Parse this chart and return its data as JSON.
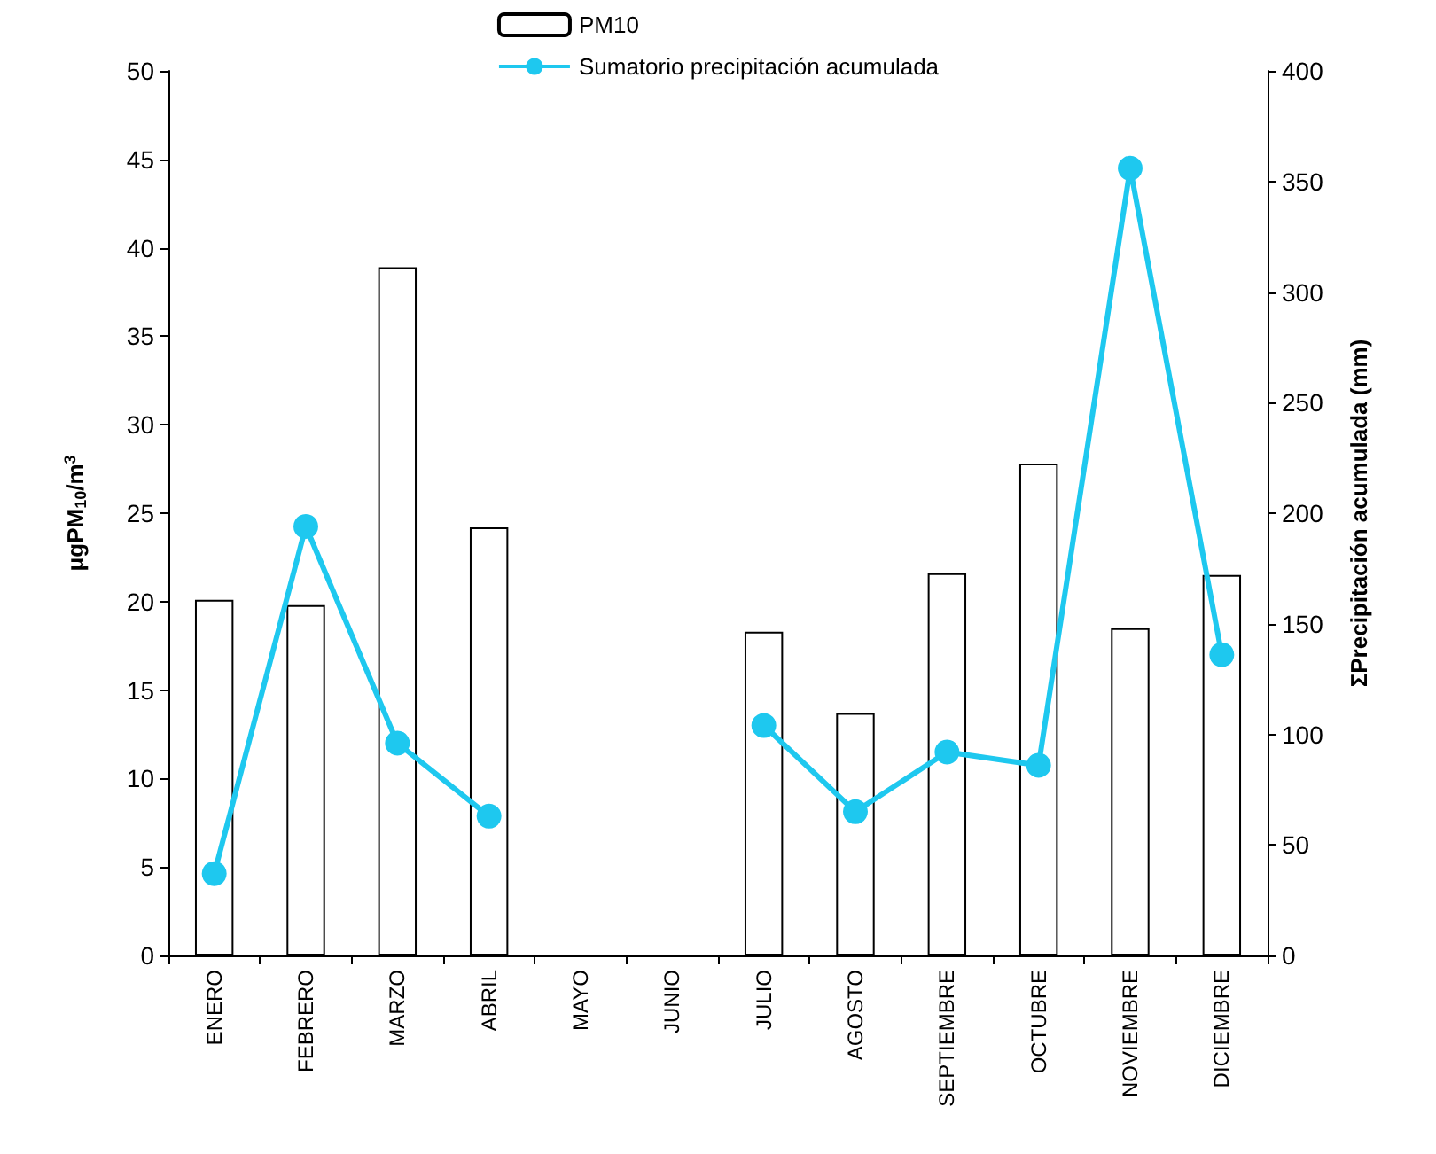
{
  "chart_data": {
    "type": "bar",
    "categories": [
      "ENERO",
      "FEBRERO",
      "MARZO",
      "ABRIL",
      "MAYO",
      "JUNIO",
      "JULIO",
      "AGOSTO",
      "SEPTIEMBRE",
      "OCTUBRE",
      "NOVIEMBRE",
      "DICIEMBRE"
    ],
    "ylabel": "μgPM$_{10}$/m$^{3}$",
    "y2label": "ΣPrecipitación acumulada (mm)",
    "series": [
      {
        "name": "PM10",
        "color": "#ffffff",
        "values": [
          20.1,
          19.8,
          38.9,
          24.2,
          null,
          null,
          18.3,
          13.7,
          21.6,
          27.8,
          18.5,
          21.5
        ]
      },
      {
        "name": "Sumatorio precipitación acumulada",
        "type": "line",
        "axis": "y2",
        "color": "#1ec8ef",
        "values": [
          37,
          194,
          96,
          63,
          null,
          null,
          104,
          65,
          92,
          86,
          356,
          136
        ]
      }
    ],
    "ylim": [
      0,
      50
    ],
    "yticks": [
      0,
      5,
      10,
      15,
      20,
      25,
      30,
      35,
      40,
      45,
      50
    ],
    "y2lim": [
      0,
      400
    ],
    "y2ticks": [
      0,
      50,
      100,
      150,
      200,
      250,
      300,
      350,
      400
    ],
    "grid": false,
    "legend": "top",
    "marker": "circle",
    "line_style": "solid"
  }
}
